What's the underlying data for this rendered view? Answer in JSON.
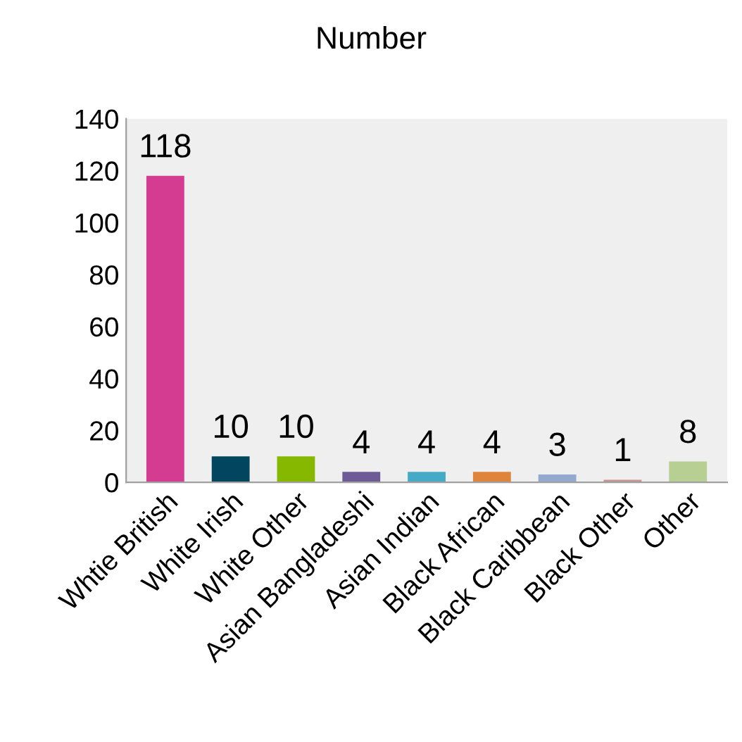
{
  "chart_data": {
    "type": "bar",
    "title": "Number",
    "categories": [
      "Whtie British",
      "White Irish",
      "White Other",
      "Asian Bangladeshi",
      "Asian Indian",
      "Black African",
      "Black Caribbean",
      "Black Other",
      "Other"
    ],
    "values": [
      118,
      10,
      10,
      4,
      4,
      4,
      3,
      1,
      8
    ],
    "colors": [
      "#d33c91",
      "#02455e",
      "#86b800",
      "#6e5a96",
      "#45aac6",
      "#de843d",
      "#93a9d0",
      "#c99393",
      "#b8cf94"
    ],
    "ylim": [
      0,
      140
    ],
    "yticks": [
      0,
      20,
      40,
      60,
      80,
      100,
      120,
      140
    ],
    "data_labels": true,
    "grid": false,
    "legend": false
  }
}
